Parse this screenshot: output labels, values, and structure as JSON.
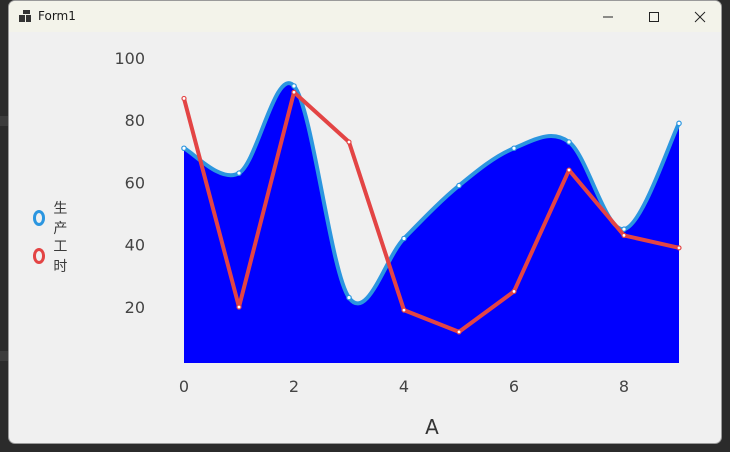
{
  "window": {
    "title": "Form1",
    "controls": {
      "minimize": "minimize-icon",
      "maximize": "maximize-icon",
      "close": "close-icon"
    }
  },
  "colors": {
    "series_area_fill": "#0000ff",
    "series_area_line": "#2b96e0",
    "series_line": "#e34444"
  },
  "legend": {
    "items": [
      {
        "label": "生产",
        "color": "#2b96e0"
      },
      {
        "label": "工时",
        "color": "#e34444"
      }
    ]
  },
  "chart_data": {
    "type": "area",
    "x": [
      0,
      1,
      2,
      3,
      4,
      5,
      6,
      7,
      8,
      9
    ],
    "x_ticks": [
      "0",
      "2",
      "4",
      "6",
      "8"
    ],
    "y_ticks": [
      "20",
      "40",
      "60",
      "80",
      "100"
    ],
    "xlabel": "A",
    "ylim": [
      2,
      100
    ],
    "xlim": [
      0,
      9
    ],
    "legend_position": "left",
    "grid": false,
    "series": [
      {
        "name": "生产",
        "kind": "smooth-area",
        "values": [
          71,
          63,
          91,
          23,
          42,
          59,
          71,
          73,
          45,
          79
        ]
      },
      {
        "name": "工时",
        "kind": "line",
        "values": [
          87,
          20,
          89,
          73,
          19,
          12,
          25,
          64,
          43,
          39
        ]
      }
    ]
  }
}
